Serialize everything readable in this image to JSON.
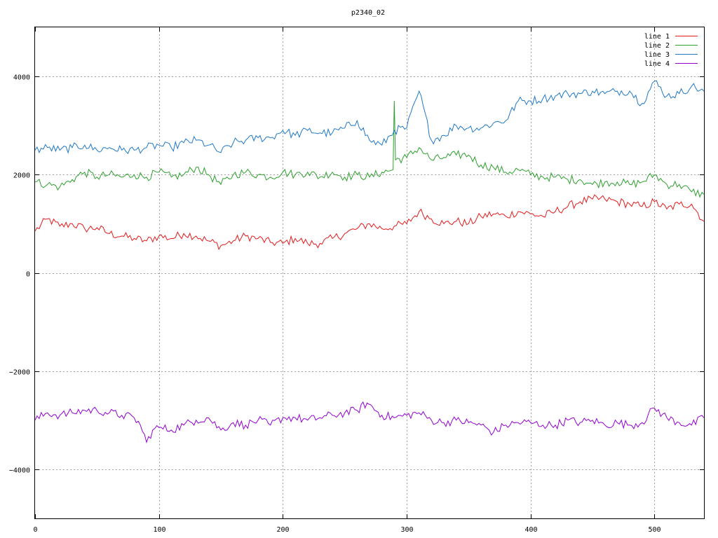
{
  "chart_data": {
    "type": "line",
    "title": "p2340_02",
    "xlim": [
      0,
      540
    ],
    "ylim": [
      -5000,
      5000
    ],
    "xticks": [
      0,
      100,
      200,
      300,
      400,
      500
    ],
    "yticks": [
      -4000,
      -2000,
      0,
      2000,
      4000
    ],
    "xtick_labels": [
      "0",
      "100",
      "200",
      "300",
      "400",
      "500"
    ],
    "ytick_labels": [
      "−4000",
      "−2000",
      "0",
      "2000",
      "4000"
    ],
    "grid": true,
    "legend": "top-right",
    "series": [
      {
        "name": "line 1",
        "color": "#e41a1c",
        "x": [
          0,
          10,
          20,
          30,
          40,
          50,
          60,
          70,
          80,
          90,
          100,
          110,
          120,
          130,
          140,
          150,
          160,
          170,
          180,
          190,
          200,
          210,
          220,
          230,
          240,
          250,
          260,
          270,
          280,
          290,
          300,
          310,
          320,
          330,
          340,
          350,
          360,
          370,
          380,
          390,
          400,
          410,
          420,
          430,
          440,
          450,
          460,
          470,
          480,
          490,
          500,
          510,
          520,
          530,
          540
        ],
        "values": [
          850,
          1100,
          950,
          1000,
          900,
          920,
          800,
          750,
          700,
          650,
          750,
          700,
          800,
          750,
          650,
          550,
          650,
          750,
          700,
          620,
          600,
          700,
          600,
          600,
          700,
          800,
          900,
          1000,
          900,
          950,
          1000,
          1250,
          1100,
          1000,
          1050,
          1000,
          1150,
          1200,
          1150,
          1250,
          1200,
          1150,
          1250,
          1350,
          1450,
          1500,
          1500,
          1450,
          1400,
          1350,
          1450,
          1300,
          1400,
          1400,
          1050
        ]
      },
      {
        "name": "line 2",
        "color": "#2ca02c",
        "x": [
          0,
          10,
          20,
          30,
          40,
          50,
          60,
          70,
          80,
          90,
          100,
          110,
          120,
          130,
          140,
          150,
          160,
          170,
          180,
          190,
          200,
          210,
          220,
          230,
          240,
          250,
          260,
          270,
          280,
          289,
          290,
          291,
          300,
          310,
          320,
          330,
          340,
          350,
          360,
          370,
          380,
          390,
          400,
          410,
          420,
          430,
          440,
          450,
          460,
          470,
          480,
          490,
          500,
          510,
          520,
          530,
          540
        ],
        "values": [
          1850,
          1800,
          1750,
          1900,
          2050,
          1950,
          2000,
          1950,
          2000,
          1950,
          2050,
          1950,
          2000,
          2150,
          2000,
          1800,
          2000,
          2050,
          2000,
          1950,
          2050,
          2000,
          2050,
          1950,
          2050,
          1950,
          2000,
          1950,
          2050,
          2100,
          3500,
          2300,
          2350,
          2550,
          2300,
          2350,
          2400,
          2400,
          2200,
          2150,
          2050,
          2100,
          2000,
          1950,
          1950,
          1900,
          1900,
          1800,
          1850,
          1850,
          1800,
          1850,
          2000,
          1800,
          1800,
          1650,
          1600
        ]
      },
      {
        "name": "line 3",
        "color": "#1f78c8",
        "x": [
          0,
          10,
          20,
          30,
          40,
          50,
          60,
          70,
          80,
          90,
          100,
          110,
          120,
          130,
          140,
          150,
          160,
          170,
          180,
          190,
          200,
          210,
          220,
          230,
          240,
          250,
          260,
          270,
          280,
          290,
          300,
          310,
          320,
          330,
          340,
          350,
          360,
          370,
          380,
          390,
          400,
          410,
          420,
          430,
          440,
          450,
          460,
          470,
          480,
          490,
          500,
          510,
          520,
          530,
          540
        ],
        "values": [
          2500,
          2550,
          2500,
          2550,
          2600,
          2500,
          2550,
          2500,
          2500,
          2550,
          2600,
          2550,
          2650,
          2700,
          2600,
          2450,
          2650,
          2700,
          2750,
          2750,
          2900,
          2800,
          2900,
          2850,
          2850,
          2950,
          3100,
          2700,
          2600,
          2900,
          2950,
          3700,
          2700,
          2800,
          3000,
          2950,
          2950,
          3050,
          3100,
          3500,
          3500,
          3550,
          3600,
          3650,
          3650,
          3700,
          3650,
          3700,
          3700,
          3450,
          3900,
          3600,
          3650,
          3800,
          3700
        ]
      },
      {
        "name": "line 4",
        "color": "#9400d3",
        "x": [
          0,
          10,
          20,
          30,
          40,
          50,
          60,
          70,
          80,
          85,
          90,
          95,
          100,
          110,
          120,
          130,
          140,
          150,
          160,
          170,
          180,
          190,
          200,
          210,
          220,
          230,
          240,
          250,
          260,
          268,
          280,
          290,
          300,
          310,
          320,
          330,
          340,
          350,
          360,
          370,
          380,
          390,
          400,
          410,
          420,
          430,
          440,
          450,
          460,
          470,
          480,
          490,
          500,
          510,
          520,
          530,
          540
        ],
        "values": [
          -3000,
          -2850,
          -2900,
          -2850,
          -2800,
          -2800,
          -2850,
          -2900,
          -2950,
          -3100,
          -3450,
          -3200,
          -3150,
          -3200,
          -3100,
          -3000,
          -2950,
          -3200,
          -3050,
          -3100,
          -3000,
          -3100,
          -2950,
          -2950,
          -3000,
          -2950,
          -2900,
          -2850,
          -2800,
          -2650,
          -2900,
          -2950,
          -2900,
          -2850,
          -3000,
          -3050,
          -3000,
          -3050,
          -3100,
          -3250,
          -3100,
          -3050,
          -3050,
          -3100,
          -3100,
          -3000,
          -3050,
          -3000,
          -3100,
          -3050,
          -3100,
          -3050,
          -2750,
          -2950,
          -3050,
          -3100,
          -2950
        ]
      }
    ]
  }
}
